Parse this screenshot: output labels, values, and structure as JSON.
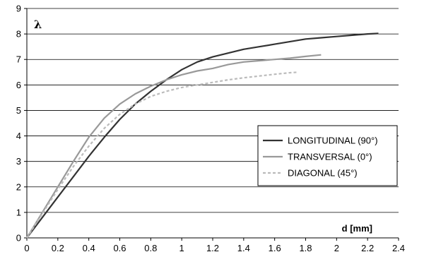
{
  "chart_data": {
    "type": "line",
    "xlabel": "d [mm]",
    "ylabel": "λ",
    "xlim": [
      0,
      2.4
    ],
    "ylim": [
      0,
      9
    ],
    "x_ticks": [
      "0",
      "0.2",
      "0.4",
      "0.6",
      "0.8",
      "1",
      "1.2",
      "1.4",
      "1.6",
      "1.8",
      "2",
      "2.2",
      "2.4"
    ],
    "y_ticks": [
      "0",
      "1",
      "2",
      "3",
      "4",
      "5",
      "6",
      "7",
      "8",
      "9"
    ],
    "grid": "horizontal",
    "legend_position": "right",
    "series": [
      {
        "name": "LONGITUDINAL (90°)",
        "color": "#333333",
        "dash": "solid",
        "points": [
          [
            0,
            0
          ],
          [
            0.1,
            0.8
          ],
          [
            0.2,
            1.6
          ],
          [
            0.3,
            2.4
          ],
          [
            0.4,
            3.2
          ],
          [
            0.5,
            3.95
          ],
          [
            0.6,
            4.65
          ],
          [
            0.7,
            5.25
          ],
          [
            0.8,
            5.75
          ],
          [
            0.9,
            6.2
          ],
          [
            1.0,
            6.6
          ],
          [
            1.1,
            6.9
          ],
          [
            1.2,
            7.1
          ],
          [
            1.3,
            7.25
          ],
          [
            1.4,
            7.4
          ],
          [
            1.5,
            7.5
          ],
          [
            1.6,
            7.6
          ],
          [
            1.7,
            7.7
          ],
          [
            1.8,
            7.8
          ],
          [
            1.9,
            7.85
          ],
          [
            2.0,
            7.9
          ],
          [
            2.1,
            7.95
          ],
          [
            2.2,
            8.0
          ],
          [
            2.27,
            8.02
          ]
        ]
      },
      {
        "name": "TRANSVERSAL (0°)",
        "color": "#999999",
        "dash": "solid",
        "points": [
          [
            0,
            0
          ],
          [
            0.1,
            1.0
          ],
          [
            0.2,
            2.0
          ],
          [
            0.3,
            3.0
          ],
          [
            0.4,
            3.95
          ],
          [
            0.5,
            4.7
          ],
          [
            0.6,
            5.25
          ],
          [
            0.7,
            5.65
          ],
          [
            0.8,
            5.95
          ],
          [
            0.9,
            6.2
          ],
          [
            1.0,
            6.4
          ],
          [
            1.1,
            6.55
          ],
          [
            1.2,
            6.65
          ],
          [
            1.3,
            6.8
          ],
          [
            1.4,
            6.9
          ],
          [
            1.5,
            6.95
          ],
          [
            1.6,
            7.0
          ],
          [
            1.7,
            7.05
          ],
          [
            1.8,
            7.12
          ],
          [
            1.9,
            7.18
          ]
        ]
      },
      {
        "name": "DIAGONAL (45°)",
        "color": "#bbbbbb",
        "dash": "dashed",
        "points": [
          [
            0,
            0
          ],
          [
            0.1,
            0.95
          ],
          [
            0.2,
            1.9
          ],
          [
            0.3,
            2.8
          ],
          [
            0.4,
            3.6
          ],
          [
            0.5,
            4.3
          ],
          [
            0.6,
            4.85
          ],
          [
            0.7,
            5.25
          ],
          [
            0.8,
            5.55
          ],
          [
            0.9,
            5.75
          ],
          [
            1.0,
            5.9
          ],
          [
            1.1,
            6.0
          ],
          [
            1.2,
            6.1
          ],
          [
            1.3,
            6.2
          ],
          [
            1.4,
            6.28
          ],
          [
            1.5,
            6.35
          ],
          [
            1.6,
            6.42
          ],
          [
            1.7,
            6.48
          ],
          [
            1.75,
            6.5
          ]
        ]
      }
    ]
  }
}
